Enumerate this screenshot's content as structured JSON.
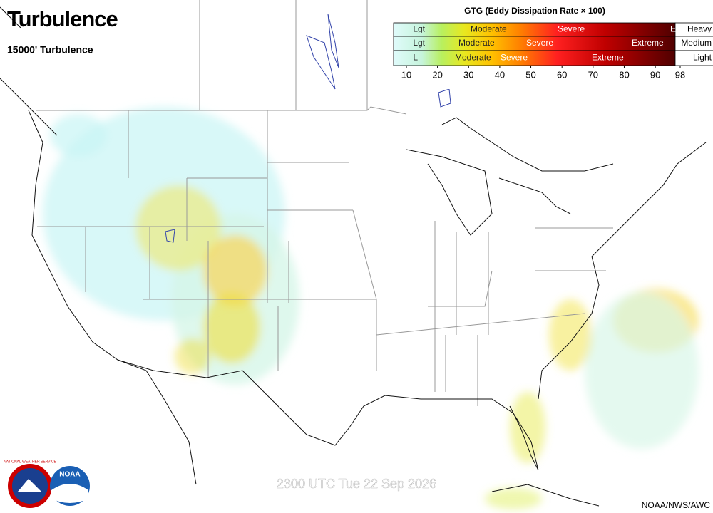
{
  "header": {
    "title": "Turbulence",
    "subtitle": "15000' Turbulence"
  },
  "legend": {
    "title": "GTG (Eddy Dissipation Rate × 100)",
    "rows": [
      {
        "name": "Heavy",
        "labels": [
          "Lgt",
          "Moderate",
          "Severe",
          "Ex"
        ]
      },
      {
        "name": "Medium",
        "labels": [
          "Lgt",
          "Moderate",
          "Severe",
          "Extreme"
        ]
      },
      {
        "name": "Light",
        "labels": [
          "L",
          "Moderate",
          "Severe",
          "Extreme"
        ]
      }
    ],
    "ticks": [
      10,
      20,
      30,
      40,
      50,
      60,
      70,
      80,
      90,
      98
    ]
  },
  "logos": {
    "nws": "NATIONAL WEATHER SERVICE",
    "noaa": "NOAA"
  },
  "footer": {
    "valid_time": "2300 UTC Tue 22 Sep 2026",
    "credit": "NOAA/NWS/AWC"
  }
}
